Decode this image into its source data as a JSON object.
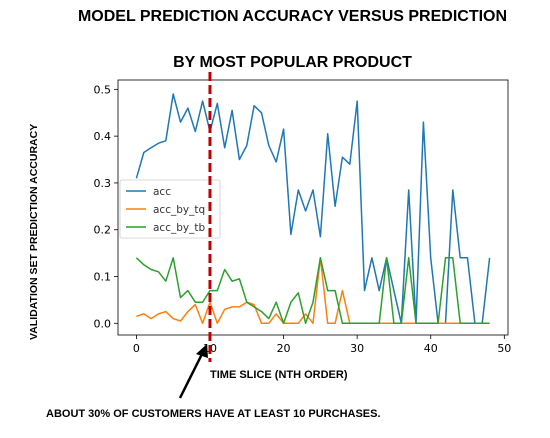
{
  "chart_data": {
    "type": "line",
    "title_lines": [
      "MODEL PREDICTION ACCURACY VERSUS PREDICTION",
      "BY MOST POPULAR PRODUCT"
    ],
    "xlabel": "TIME SLICE (NTH ORDER)",
    "ylabel": "VALIDATION SET PREDICTION ACCURACY",
    "xlim": [
      -2.5,
      50.5
    ],
    "ylim": [
      -0.025,
      0.52
    ],
    "xticks": [
      0,
      10,
      20,
      30,
      40,
      50
    ],
    "yticks": [
      0.0,
      0.1,
      0.2,
      0.3,
      0.4,
      0.5
    ],
    "grid": false,
    "legend": "center-left",
    "x": [
      0,
      1,
      2,
      3,
      4,
      5,
      6,
      7,
      8,
      9,
      10,
      11,
      12,
      13,
      14,
      15,
      16,
      17,
      18,
      19,
      20,
      21,
      22,
      23,
      24,
      25,
      26,
      27,
      28,
      29,
      30,
      31,
      32,
      33,
      34,
      35,
      36,
      37,
      38,
      39,
      40,
      41,
      42,
      43,
      44,
      45,
      46,
      47,
      48
    ],
    "series": [
      {
        "name": "acc",
        "color": "#1f77b4",
        "values": [
          0.31,
          0.365,
          0.375,
          0.385,
          0.39,
          0.49,
          0.43,
          0.46,
          0.41,
          0.475,
          0.41,
          0.47,
          0.375,
          0.455,
          0.35,
          0.38,
          0.465,
          0.45,
          0.38,
          0.345,
          0.415,
          0.19,
          0.285,
          0.24,
          0.285,
          0.185,
          0.405,
          0.25,
          0.355,
          0.34,
          0.475,
          0.07,
          0.14,
          0.07,
          0.14,
          0.07,
          0.0,
          0.285,
          0.0,
          0.43,
          0.14,
          0.0,
          0.0,
          0.285,
          0.14,
          0.14,
          0.0,
          0.0,
          0.14
        ]
      },
      {
        "name": "acc_by_tq",
        "color": "#ff7f0e",
        "values": [
          0.015,
          0.02,
          0.01,
          0.02,
          0.025,
          0.01,
          0.005,
          0.025,
          0.04,
          0.0,
          0.045,
          0.0,
          0.03,
          0.035,
          0.035,
          0.045,
          0.04,
          0.0,
          0.0,
          0.02,
          0.0,
          0.0,
          0.0,
          0.02,
          0.0,
          0.14,
          0.0,
          0.0,
          0.07,
          0.0,
          0.0,
          0.0,
          0.0,
          0.0,
          0.0,
          0.0,
          0.0,
          0.0,
          0.0,
          0.0,
          0.0,
          0.0,
          0.0,
          0.0,
          0.0,
          0.0,
          0.0,
          0.0,
          0.0
        ]
      },
      {
        "name": "acc_by_tb",
        "color": "#2ca02c",
        "values": [
          0.14,
          0.125,
          0.115,
          0.11,
          0.09,
          0.14,
          0.055,
          0.07,
          0.045,
          0.045,
          0.07,
          0.07,
          0.115,
          0.09,
          0.095,
          0.045,
          0.035,
          0.025,
          0.01,
          0.045,
          0.0,
          0.045,
          0.065,
          0.0,
          0.045,
          0.14,
          0.07,
          0.07,
          0.0,
          0.0,
          0.0,
          0.0,
          0.0,
          0.0,
          0.14,
          0.0,
          0.0,
          0.14,
          0.0,
          0.0,
          0.0,
          0.0,
          0.14,
          0.14,
          0.0,
          0.0,
          0.0,
          0.0,
          0.0
        ]
      }
    ],
    "annotations": [
      {
        "type": "vertical-dashed-line",
        "x": 10,
        "color": "#c00000"
      },
      {
        "type": "arrow",
        "text": "ABOUT 30% OF CUSTOMERS HAVE AT LEAST 10 PURCHASES."
      }
    ]
  }
}
